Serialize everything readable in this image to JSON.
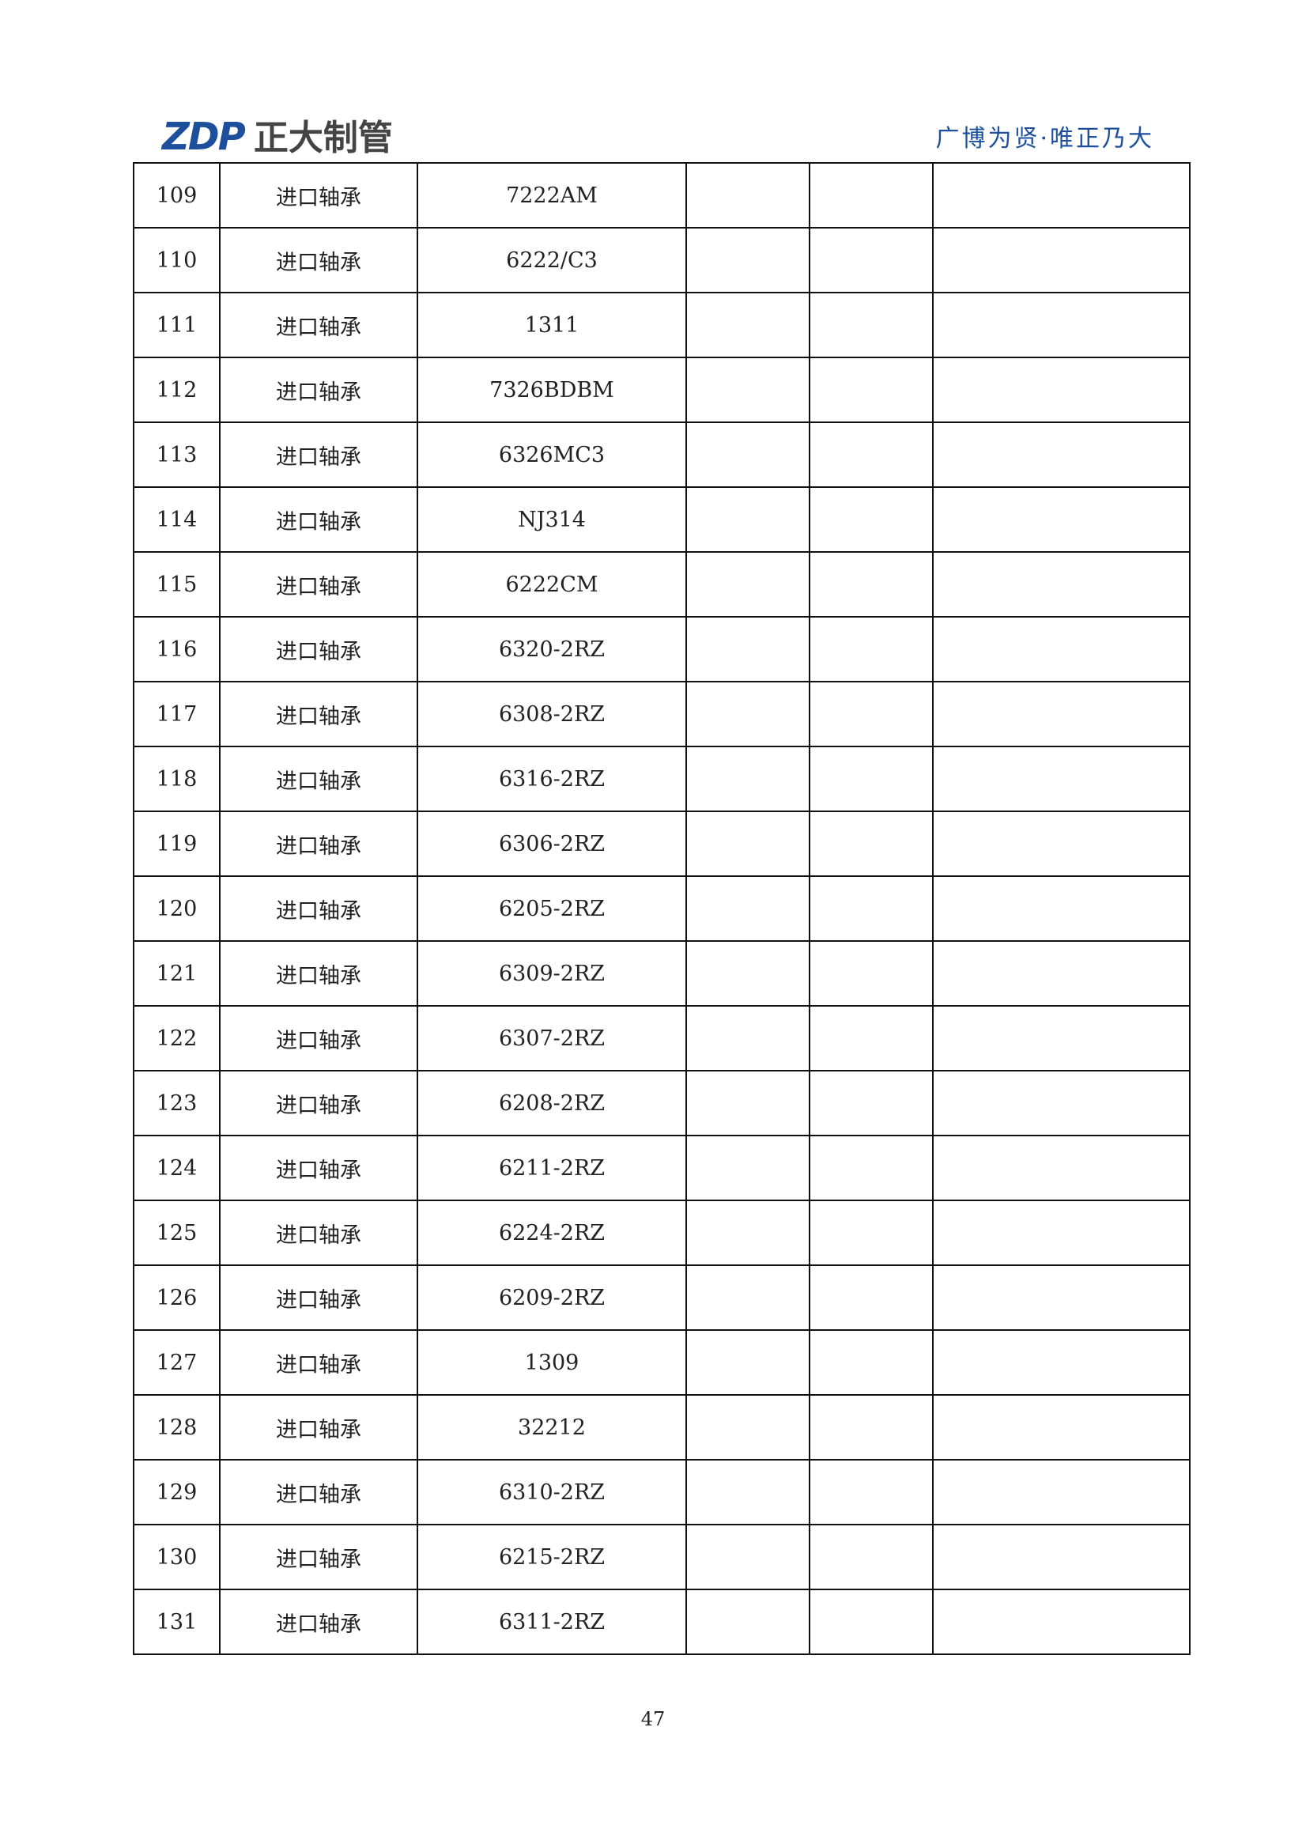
{
  "header": {
    "logo_mark": "ZDP",
    "logo_text": "正大制管",
    "slogan": "广博为贤·唯正乃大"
  },
  "table": {
    "rows": [
      [
        "109",
        "进口轴承",
        "7222AM"
      ],
      [
        "110",
        "进口轴承",
        "6222/C3"
      ],
      [
        "111",
        "进口轴承",
        "1311"
      ],
      [
        "112",
        "进口轴承",
        "7326BDBM"
      ],
      [
        "113",
        "进口轴承",
        "6326MC3"
      ],
      [
        "114",
        "进口轴承",
        "NJ314"
      ],
      [
        "115",
        "进口轴承",
        "6222CM"
      ],
      [
        "116",
        "进口轴承",
        "6320-2RZ"
      ],
      [
        "117",
        "进口轴承",
        "6308-2RZ"
      ],
      [
        "118",
        "进口轴承",
        "6316-2RZ"
      ],
      [
        "119",
        "进口轴承",
        "6306-2RZ"
      ],
      [
        "120",
        "进口轴承",
        "6205-2RZ"
      ],
      [
        "121",
        "进口轴承",
        "6309-2RZ"
      ],
      [
        "122",
        "进口轴承",
        "6307-2RZ"
      ],
      [
        "123",
        "进口轴承",
        "6208-2RZ"
      ],
      [
        "124",
        "进口轴承",
        "6211-2RZ"
      ],
      [
        "125",
        "进口轴承",
        "6224-2RZ"
      ],
      [
        "126",
        "进口轴承",
        "6209-2RZ"
      ],
      [
        "127",
        "进口轴承",
        "1309"
      ],
      [
        "128",
        "进口轴承",
        "32212"
      ],
      [
        "129",
        "进口轴承",
        "6310-2RZ"
      ],
      [
        "130",
        "进口轴承",
        "6215-2RZ"
      ],
      [
        "131",
        "进口轴承",
        "6311-2RZ"
      ]
    ]
  },
  "footer": {
    "page_number": "47"
  }
}
